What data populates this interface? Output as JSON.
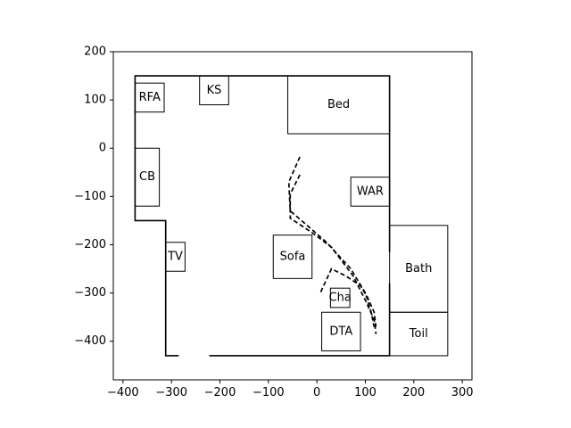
{
  "chart_data": {
    "type": "scatter",
    "title": "",
    "xlabel": "",
    "ylabel": "",
    "xlim": [
      -420,
      320
    ],
    "ylim": [
      -480,
      200
    ],
    "xticks": [
      -400,
      -300,
      -200,
      -100,
      0,
      100,
      200,
      300
    ],
    "yticks": [
      -400,
      -300,
      -200,
      -100,
      0,
      100,
      200
    ],
    "xtick_labels": [
      "−400",
      "−300",
      "−200",
      "−100",
      "0",
      "100",
      "200",
      "300"
    ],
    "ytick_labels": [
      "−400",
      "−300",
      "−200",
      "−100",
      "0",
      "100",
      "200"
    ],
    "grid": false,
    "outline": {
      "color": "#000000",
      "points": [
        [
          150,
          -300
        ],
        [
          150,
          150
        ],
        [
          -375,
          150
        ],
        [
          -375,
          -150
        ],
        [
          -312,
          -150
        ],
        [
          -312,
          -430
        ],
        [
          150,
          -430
        ],
        [
          150,
          -300
        ]
      ]
    },
    "door_gaps": [
      {
        "segment": [
          [
            -285,
            -430
          ],
          [
            -222,
            -430
          ]
        ]
      },
      {
        "segment": [
          [
            150,
            -215
          ],
          [
            150,
            -280
          ]
        ]
      }
    ],
    "furniture": [
      {
        "label": "RFA",
        "x": [
          -375,
          -315
        ],
        "y": [
          75,
          135
        ]
      },
      {
        "label": "KS",
        "x": [
          -242,
          -182
        ],
        "y": [
          90,
          150
        ]
      },
      {
        "label": "Bed",
        "x": [
          -60,
          150
        ],
        "y": [
          30,
          150
        ]
      },
      {
        "label": "CB",
        "x": [
          -375,
          -325
        ],
        "y": [
          -120,
          0
        ]
      },
      {
        "label": "WAR",
        "x": [
          70,
          150
        ],
        "y": [
          -120,
          -60
        ]
      },
      {
        "label": "TV",
        "x": [
          -312,
          -272
        ],
        "y": [
          -255,
          -195
        ]
      },
      {
        "label": "Sofa",
        "x": [
          -90,
          -10
        ],
        "y": [
          -270,
          -180
        ]
      },
      {
        "label": "Bath",
        "x": [
          150,
          270
        ],
        "y": [
          -340,
          -160
        ]
      },
      {
        "label": "Cha",
        "x": [
          28,
          68
        ],
        "y": [
          -330,
          -290
        ]
      },
      {
        "label": "DTA",
        "x": [
          10,
          90
        ],
        "y": [
          -420,
          -340
        ]
      },
      {
        "label": "Toil",
        "x": [
          150,
          270
        ],
        "y": [
          -430,
          -340
        ]
      }
    ],
    "series": [
      {
        "style": "dashed",
        "color": "#000000",
        "x": [
          -35,
          -58,
          -55,
          -20,
          20,
          70,
          100,
          112,
          118
        ],
        "y": [
          -18,
          -70,
          -130,
          -160,
          -195,
          -250,
          -300,
          -340,
          -370
        ]
      },
      {
        "style": "dashed",
        "color": "#000000",
        "x": [
          -35,
          -55,
          -55,
          -10,
          30,
          75,
          100,
          118,
          122
        ],
        "y": [
          -55,
          -95,
          -145,
          -175,
          -205,
          -265,
          -315,
          -355,
          -385
        ]
      },
      {
        "style": "dashed",
        "color": "#000000",
        "x": [
          8,
          30,
          60,
          90,
          105,
          118,
          122
        ],
        "y": [
          -298,
          -250,
          -265,
          -285,
          -310,
          -340,
          -370
        ]
      }
    ]
  }
}
